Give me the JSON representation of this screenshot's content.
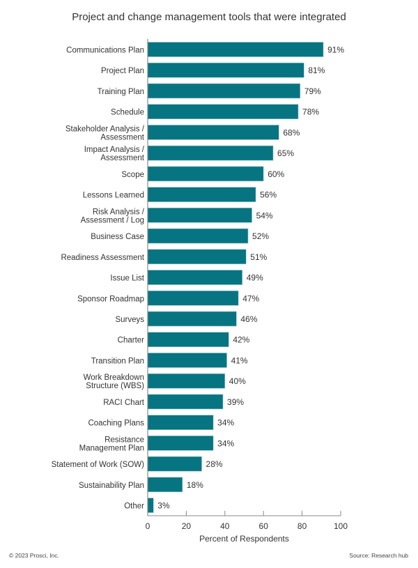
{
  "chart_data": {
    "type": "bar",
    "orientation": "horizontal",
    "title": "Project and change management tools that were integrated",
    "xlabel": "Percent of Respondents",
    "ylabel": "",
    "xlim": [
      0,
      100
    ],
    "xticks": [
      "0",
      "20",
      "40",
      "60",
      "80",
      "100"
    ],
    "grid": false,
    "bar_color": "#077482",
    "categories": [
      [
        "Communications Plan"
      ],
      [
        "Project Plan"
      ],
      [
        "Training Plan"
      ],
      [
        "Schedule"
      ],
      [
        "Stakeholder Analysis /",
        "Assessment"
      ],
      [
        "Impact Analysis /",
        "Assessment"
      ],
      [
        "Scope"
      ],
      [
        "Lessons Learned"
      ],
      [
        "Risk Analysis /",
        "Assessment / Log"
      ],
      [
        "Business Case"
      ],
      [
        "Readiness Assessment"
      ],
      [
        "Issue List"
      ],
      [
        "Sponsor Roadmap"
      ],
      [
        "Surveys"
      ],
      [
        "Charter"
      ],
      [
        "Transition Plan"
      ],
      [
        "Work Breakdown",
        "Structure (WBS)"
      ],
      [
        "RACI Chart"
      ],
      [
        "Coaching Plans"
      ],
      [
        "Resistance",
        "Management Plan"
      ],
      [
        "Statement of Work (SOW)"
      ],
      [
        "Sustainability Plan"
      ],
      [
        "Other"
      ]
    ],
    "values": [
      91,
      81,
      79,
      78,
      68,
      65,
      60,
      56,
      54,
      52,
      51,
      49,
      47,
      46,
      42,
      41,
      40,
      39,
      34,
      34,
      28,
      18,
      3
    ],
    "data_labels": [
      "91%",
      "81%",
      "79%",
      "78%",
      "68%",
      "65%",
      "60%",
      "56%",
      "54%",
      "52%",
      "51%",
      "49%",
      "47%",
      "46%",
      "42%",
      "41%",
      "40%",
      "39%",
      "34%",
      "34%",
      "28%",
      "18%",
      "3%"
    ]
  },
  "footer": {
    "copyright": "© 2023 Prosci, Inc.",
    "source": "Source: Research hub"
  }
}
